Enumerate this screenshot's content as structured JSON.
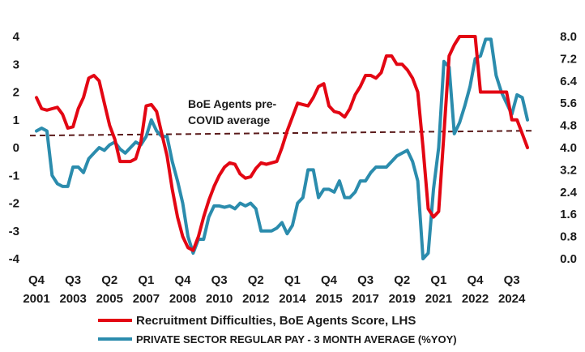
{
  "chart_data": {
    "type": "line",
    "title": "",
    "left_axis": {
      "ylim": [
        -4,
        4
      ],
      "ticks": [
        "4",
        "3",
        "2",
        "1",
        "0",
        "-1",
        "-2",
        "-3",
        "-4"
      ]
    },
    "right_axis": {
      "ylim": [
        0.0,
        8.0
      ],
      "ticks": [
        "8.0",
        "7.2",
        "6.4",
        "5.6",
        "4.8",
        "4.0",
        "3.2",
        "2.4",
        "1.6",
        "0.8",
        "0.0"
      ]
    },
    "x_ticks": [
      {
        "q": "Q4",
        "y": "2001"
      },
      {
        "q": "Q3",
        "y": "2003"
      },
      {
        "q": "Q2",
        "y": "2005"
      },
      {
        "q": "Q1",
        "y": "2007"
      },
      {
        "q": "Q4",
        "y": "2008"
      },
      {
        "q": "Q3",
        "y": "2010"
      },
      {
        "q": "Q2",
        "y": "2012"
      },
      {
        "q": "Q1",
        "y": "2014"
      },
      {
        "q": "Q4",
        "y": "2015"
      },
      {
        "q": "Q3",
        "y": "2017"
      },
      {
        "q": "Q2",
        "y": "2019"
      },
      {
        "q": "Q1",
        "y": "2021"
      },
      {
        "q": "Q4",
        "y": "2022"
      },
      {
        "q": "Q3",
        "y": "2024"
      }
    ],
    "series": [
      {
        "name": "Recruitment Difficulties, BoE Agents Score, LHS",
        "axis": "left",
        "color": "#e30613",
        "points": [
          [
            2001.75,
            1.8
          ],
          [
            2002.0,
            1.4
          ],
          [
            2002.25,
            1.35
          ],
          [
            2002.5,
            1.4
          ],
          [
            2002.75,
            1.45
          ],
          [
            2003.0,
            1.2
          ],
          [
            2003.25,
            0.7
          ],
          [
            2003.5,
            0.75
          ],
          [
            2003.75,
            1.4
          ],
          [
            2004.0,
            1.8
          ],
          [
            2004.25,
            2.5
          ],
          [
            2004.5,
            2.6
          ],
          [
            2004.75,
            2.4
          ],
          [
            2005.0,
            1.6
          ],
          [
            2005.25,
            0.8
          ],
          [
            2005.5,
            0.3
          ],
          [
            2005.75,
            -0.5
          ],
          [
            2006.0,
            -0.5
          ],
          [
            2006.25,
            -0.5
          ],
          [
            2006.5,
            -0.4
          ],
          [
            2006.75,
            0.2
          ],
          [
            2007.0,
            1.5
          ],
          [
            2007.25,
            1.55
          ],
          [
            2007.5,
            1.3
          ],
          [
            2007.75,
            0.5
          ],
          [
            2008.0,
            -0.3
          ],
          [
            2008.25,
            -1.5
          ],
          [
            2008.5,
            -2.5
          ],
          [
            2008.75,
            -3.2
          ],
          [
            2009.0,
            -3.6
          ],
          [
            2009.25,
            -3.7
          ],
          [
            2009.5,
            -3.2
          ],
          [
            2009.75,
            -2.5
          ],
          [
            2010.0,
            -1.9
          ],
          [
            2010.25,
            -1.4
          ],
          [
            2010.5,
            -1.0
          ],
          [
            2010.75,
            -0.7
          ],
          [
            2011.0,
            -0.55
          ],
          [
            2011.25,
            -0.6
          ],
          [
            2011.5,
            -0.95
          ],
          [
            2011.75,
            -1.1
          ],
          [
            2012.0,
            -1.05
          ],
          [
            2012.25,
            -0.75
          ],
          [
            2012.5,
            -0.55
          ],
          [
            2012.75,
            -0.6
          ],
          [
            2013.0,
            -0.55
          ],
          [
            2013.25,
            -0.5
          ],
          [
            2013.5,
            0.0
          ],
          [
            2013.75,
            0.6
          ],
          [
            2014.0,
            1.1
          ],
          [
            2014.25,
            1.6
          ],
          [
            2014.5,
            1.55
          ],
          [
            2014.75,
            1.5
          ],
          [
            2015.0,
            1.8
          ],
          [
            2015.25,
            2.2
          ],
          [
            2015.5,
            2.3
          ],
          [
            2015.75,
            1.5
          ],
          [
            2016.0,
            1.3
          ],
          [
            2016.25,
            1.25
          ],
          [
            2016.5,
            1.1
          ],
          [
            2016.75,
            1.4
          ],
          [
            2017.0,
            1.9
          ],
          [
            2017.25,
            2.2
          ],
          [
            2017.5,
            2.6
          ],
          [
            2017.75,
            2.6
          ],
          [
            2018.0,
            2.5
          ],
          [
            2018.25,
            2.7
          ],
          [
            2018.5,
            3.3
          ],
          [
            2018.75,
            3.3
          ],
          [
            2019.0,
            3.0
          ],
          [
            2019.25,
            3.0
          ],
          [
            2019.5,
            2.8
          ],
          [
            2019.75,
            2.5
          ],
          [
            2020.0,
            2.0
          ],
          [
            2020.25,
            0.0
          ],
          [
            2020.5,
            -2.2
          ],
          [
            2020.75,
            -2.5
          ],
          [
            2021.0,
            -2.3
          ],
          [
            2021.25,
            0.5
          ],
          [
            2021.5,
            3.3
          ],
          [
            2021.75,
            3.7
          ],
          [
            2022.0,
            4.0
          ],
          [
            2022.25,
            4.0
          ],
          [
            2022.5,
            4.0
          ],
          [
            2022.75,
            4.0
          ],
          [
            2023.0,
            2.0
          ],
          [
            2023.25,
            2.0
          ],
          [
            2023.5,
            2.0
          ],
          [
            2023.75,
            2.0
          ],
          [
            2024.0,
            2.0
          ],
          [
            2024.25,
            2.0
          ],
          [
            2024.5,
            1.0
          ],
          [
            2024.75,
            1.0
          ],
          [
            2025.0,
            0.5
          ],
          [
            2025.25,
            0.0
          ]
        ]
      },
      {
        "name": "PRIVATE SECTOR REGULAR PAY - 3 MONTH AVERAGE (%YOY)",
        "axis": "right",
        "color": "#2b8cad",
        "points": [
          [
            2001.75,
            4.6
          ],
          [
            2002.0,
            4.7
          ],
          [
            2002.25,
            4.6
          ],
          [
            2002.5,
            3.0
          ],
          [
            2002.75,
            2.7
          ],
          [
            2003.0,
            2.6
          ],
          [
            2003.25,
            2.6
          ],
          [
            2003.5,
            3.3
          ],
          [
            2003.75,
            3.3
          ],
          [
            2004.0,
            3.1
          ],
          [
            2004.25,
            3.6
          ],
          [
            2004.5,
            3.8
          ],
          [
            2004.75,
            4.0
          ],
          [
            2005.0,
            3.9
          ],
          [
            2005.25,
            4.1
          ],
          [
            2005.5,
            4.2
          ],
          [
            2005.75,
            3.95
          ],
          [
            2006.0,
            3.8
          ],
          [
            2006.25,
            4.0
          ],
          [
            2006.5,
            4.2
          ],
          [
            2006.75,
            4.1
          ],
          [
            2007.0,
            4.4
          ],
          [
            2007.25,
            5.0
          ],
          [
            2007.5,
            4.6
          ],
          [
            2007.75,
            4.4
          ],
          [
            2008.0,
            4.4
          ],
          [
            2008.25,
            3.5
          ],
          [
            2008.5,
            2.8
          ],
          [
            2008.75,
            2.0
          ],
          [
            2009.0,
            0.8
          ],
          [
            2009.25,
            0.2
          ],
          [
            2009.5,
            0.7
          ],
          [
            2009.75,
            0.7
          ],
          [
            2010.0,
            1.5
          ],
          [
            2010.25,
            1.9
          ],
          [
            2010.5,
            1.9
          ],
          [
            2010.75,
            1.85
          ],
          [
            2011.0,
            1.9
          ],
          [
            2011.25,
            1.8
          ],
          [
            2011.5,
            2.0
          ],
          [
            2011.75,
            1.9
          ],
          [
            2012.0,
            2.0
          ],
          [
            2012.25,
            1.8
          ],
          [
            2012.5,
            1.0
          ],
          [
            2012.75,
            1.0
          ],
          [
            2013.0,
            1.0
          ],
          [
            2013.25,
            1.1
          ],
          [
            2013.5,
            1.3
          ],
          [
            2013.75,
            0.9
          ],
          [
            2014.0,
            1.2
          ],
          [
            2014.25,
            2.0
          ],
          [
            2014.5,
            2.2
          ],
          [
            2014.75,
            3.2
          ],
          [
            2015.0,
            3.2
          ],
          [
            2015.25,
            2.2
          ],
          [
            2015.5,
            2.5
          ],
          [
            2015.75,
            2.5
          ],
          [
            2016.0,
            2.4
          ],
          [
            2016.25,
            2.8
          ],
          [
            2016.5,
            2.2
          ],
          [
            2016.75,
            2.2
          ],
          [
            2017.0,
            2.4
          ],
          [
            2017.25,
            2.8
          ],
          [
            2017.5,
            2.8
          ],
          [
            2017.75,
            3.1
          ],
          [
            2018.0,
            3.3
          ],
          [
            2018.25,
            3.3
          ],
          [
            2018.5,
            3.3
          ],
          [
            2018.75,
            3.5
          ],
          [
            2019.0,
            3.7
          ],
          [
            2019.25,
            3.8
          ],
          [
            2019.5,
            3.9
          ],
          [
            2019.75,
            3.5
          ],
          [
            2020.0,
            2.8
          ],
          [
            2020.25,
            0.0
          ],
          [
            2020.5,
            0.2
          ],
          [
            2020.75,
            2.5
          ],
          [
            2021.0,
            4.0
          ],
          [
            2021.25,
            7.1
          ],
          [
            2021.5,
            6.9
          ],
          [
            2021.75,
            4.5
          ],
          [
            2022.0,
            4.9
          ],
          [
            2022.25,
            5.5
          ],
          [
            2022.5,
            6.2
          ],
          [
            2022.75,
            7.2
          ],
          [
            2023.0,
            7.3
          ],
          [
            2023.25,
            7.9
          ],
          [
            2023.5,
            7.9
          ],
          [
            2023.75,
            6.6
          ],
          [
            2024.0,
            6.0
          ],
          [
            2024.25,
            5.6
          ],
          [
            2024.5,
            5.2
          ],
          [
            2024.75,
            5.9
          ],
          [
            2025.0,
            5.8
          ],
          [
            2025.25,
            5.0
          ]
        ]
      }
    ],
    "reference_line": {
      "label_line1": "BoE Agents pre-",
      "label_line2": "COVID average",
      "value": 0.55,
      "axis": "left",
      "color": "#5a1a1a"
    },
    "grid": false,
    "legend_position": "bottom"
  }
}
